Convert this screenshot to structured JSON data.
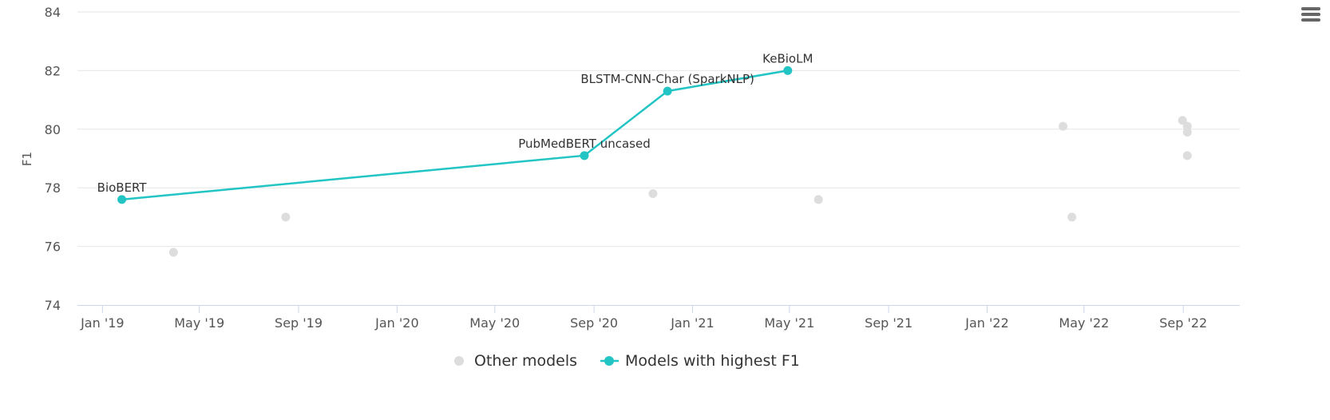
{
  "chart_data": {
    "type": "scatter",
    "title": "",
    "xlabel": "",
    "ylabel": "F1",
    "ylim": [
      74,
      84
    ],
    "yticks": [
      74,
      76,
      78,
      80,
      82,
      84
    ],
    "xlim": [
      "2018-12-01",
      "2022-11-10"
    ],
    "xticks": [
      {
        "date": "2019-01-01",
        "label": "Jan '19"
      },
      {
        "date": "2019-05-01",
        "label": "May '19"
      },
      {
        "date": "2019-09-01",
        "label": "Sep '19"
      },
      {
        "date": "2020-01-01",
        "label": "Jan '20"
      },
      {
        "date": "2020-05-01",
        "label": "May '20"
      },
      {
        "date": "2020-09-01",
        "label": "Sep '20"
      },
      {
        "date": "2021-01-01",
        "label": "Jan '21"
      },
      {
        "date": "2021-05-01",
        "label": "May '21"
      },
      {
        "date": "2021-09-01",
        "label": "Sep '21"
      },
      {
        "date": "2022-01-01",
        "label": "Jan '22"
      },
      {
        "date": "2022-05-01",
        "label": "May '22"
      },
      {
        "date": "2022-09-01",
        "label": "Sep '22"
      }
    ],
    "grid": true,
    "legend_position": "bottom",
    "series": [
      {
        "name": "Other models",
        "color": "#dddddd",
        "points": [
          {
            "x": "2019-03-30",
            "y": 75.8
          },
          {
            "x": "2019-08-16",
            "y": 77.0
          },
          {
            "x": "2020-11-13",
            "y": 77.8
          },
          {
            "x": "2021-06-06",
            "y": 77.6
          },
          {
            "x": "2022-04-05",
            "y": 80.1
          },
          {
            "x": "2022-04-16",
            "y": 77.0
          },
          {
            "x": "2022-08-31",
            "y": 80.3
          },
          {
            "x": "2022-09-06",
            "y": 80.1
          },
          {
            "x": "2022-09-06",
            "y": 79.9
          },
          {
            "x": "2022-09-06",
            "y": 79.1
          }
        ]
      },
      {
        "name": "Models with highest F1",
        "color": "#22c4c4",
        "points": [
          {
            "x": "2019-01-25",
            "y": 77.6,
            "label": "BioBERT"
          },
          {
            "x": "2020-08-20",
            "y": 79.1,
            "label": "PubMedBERT uncased"
          },
          {
            "x": "2020-12-01",
            "y": 81.3,
            "label": "BLSTM-CNN-Char (SparkNLP)"
          },
          {
            "x": "2021-04-29",
            "y": 82.0,
            "label": "KeBioLM"
          }
        ]
      }
    ]
  }
}
